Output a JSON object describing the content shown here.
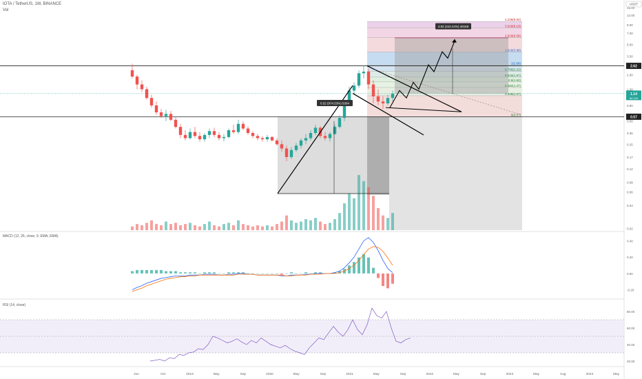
{
  "header": {
    "symbol": "IOTA / TetherUS, 1W, BINANCE",
    "volume_label": "Vol",
    "currency_badge": "USDT"
  },
  "colors": {
    "up": "#26a69a",
    "down": "#ef5350",
    "macd": "#2962ff",
    "signal": "#ff6d00",
    "rsi": "#7e57c2",
    "rsi_band": "#ede7f6",
    "gray_box": "#d9d9d9",
    "dark_box": "#a8a8a8",
    "pink": "#f3c6c6",
    "blue": "#c6dcef",
    "darkline": "#000000"
  },
  "chart_data": {
    "type": "candlestick",
    "price_scale": "log",
    "price_ticks": [
      "15.00",
      "12.00",
      "9.00",
      "7.00",
      "5.00",
      "3.50",
      "2.00",
      "1.30",
      "0.80",
      "0.50",
      "0.35",
      "0.25",
      "0.17",
      "0.12",
      "0.08",
      "0.06",
      "0.04",
      "0.02"
    ],
    "price_tick_values": [
      15,
      12,
      9,
      7,
      5,
      3.5,
      2,
      1.3,
      0.8,
      0.5,
      0.35,
      0.25,
      0.17,
      0.12,
      0.08,
      0.06,
      0.04,
      0.02
    ],
    "time_labels": [
      "Jun",
      "Oct",
      "2019",
      "May",
      "Sep",
      "2020",
      "May",
      "Sep",
      "2021",
      "May",
      "Sep",
      "2022",
      "May",
      "Sep",
      "2023",
      "May",
      "Aug",
      "2024",
      "May"
    ],
    "horizontal_levels": [
      {
        "value": 2.62,
        "label": "2.62"
      },
      {
        "value": 0.57,
        "label": "0.57"
      }
    ],
    "last_price": {
      "value": 1.14,
      "label": "1.14",
      "countdown": "5d 12h"
    },
    "fib_levels": [
      {
        "ratio": "4.236",
        "price": 9.92,
        "text": "4.236(9.92)"
      },
      {
        "ratio": "3.618",
        "price": 8.19,
        "text": "3.618(8.19)"
      },
      {
        "ratio": "2.618",
        "price": 6.09,
        "text": "2.618(6.09)"
      },
      {
        "ratio": "1.618",
        "price": 3.98,
        "text": "1.618(3.98)"
      },
      {
        "ratio": "1",
        "price": 2.68,
        "text": "1(2.68)"
      },
      {
        "ratio": "0.786",
        "price": 2.22,
        "text": "0.786(2.22)"
      },
      {
        "ratio": "0.618",
        "price": 1.87,
        "text": "0.618(1.87)"
      },
      {
        "ratio": "0.5",
        "price": 1.62,
        "text": "0.5(1.62)"
      },
      {
        "ratio": "0.382",
        "price": 1.37,
        "text": "0.382(1.37)"
      },
      {
        "ratio": "0.236",
        "price": 1.07,
        "text": "0.236(1.07)"
      },
      {
        "ratio": "0",
        "price": 0.57,
        "text": "0(0.57)"
      }
    ],
    "annotations": [
      {
        "text": "0.52 (974.53%) 5304",
        "kind": "measure-1"
      },
      {
        "text": "4.82 (410.44%) 48168",
        "kind": "measure-2"
      }
    ],
    "price_series": [
      {
        "x": 0,
        "o": 2.3,
        "h": 2.8,
        "l": 1.8,
        "c": 1.9
      },
      {
        "x": 1,
        "o": 1.9,
        "h": 2.0,
        "l": 1.3,
        "c": 1.5
      },
      {
        "x": 2,
        "o": 1.5,
        "h": 1.7,
        "l": 1.2,
        "c": 1.3
      },
      {
        "x": 3,
        "o": 1.3,
        "h": 1.4,
        "l": 0.95,
        "c": 1.0
      },
      {
        "x": 4,
        "o": 1.0,
        "h": 1.1,
        "l": 0.75,
        "c": 0.8
      },
      {
        "x": 5,
        "o": 0.8,
        "h": 0.9,
        "l": 0.6,
        "c": 0.65
      },
      {
        "x": 6,
        "o": 0.65,
        "h": 0.72,
        "l": 0.55,
        "c": 0.58
      },
      {
        "x": 7,
        "o": 0.58,
        "h": 0.7,
        "l": 0.5,
        "c": 0.62
      },
      {
        "x": 8,
        "o": 0.62,
        "h": 0.68,
        "l": 0.5,
        "c": 0.52
      },
      {
        "x": 9,
        "o": 0.52,
        "h": 0.56,
        "l": 0.4,
        "c": 0.42
      },
      {
        "x": 10,
        "o": 0.42,
        "h": 0.46,
        "l": 0.3,
        "c": 0.33
      },
      {
        "x": 11,
        "o": 0.33,
        "h": 0.38,
        "l": 0.28,
        "c": 0.3
      },
      {
        "x": 12,
        "o": 0.3,
        "h": 0.4,
        "l": 0.29,
        "c": 0.36
      },
      {
        "x": 13,
        "o": 0.36,
        "h": 0.42,
        "l": 0.3,
        "c": 0.32
      },
      {
        "x": 14,
        "o": 0.32,
        "h": 0.36,
        "l": 0.27,
        "c": 0.29
      },
      {
        "x": 15,
        "o": 0.29,
        "h": 0.35,
        "l": 0.27,
        "c": 0.33
      },
      {
        "x": 16,
        "o": 0.33,
        "h": 0.4,
        "l": 0.3,
        "c": 0.37
      },
      {
        "x": 17,
        "o": 0.37,
        "h": 0.41,
        "l": 0.31,
        "c": 0.33
      },
      {
        "x": 18,
        "o": 0.33,
        "h": 0.36,
        "l": 0.28,
        "c": 0.3
      },
      {
        "x": 19,
        "o": 0.3,
        "h": 0.34,
        "l": 0.27,
        "c": 0.31
      },
      {
        "x": 20,
        "o": 0.31,
        "h": 0.4,
        "l": 0.3,
        "c": 0.38
      },
      {
        "x": 21,
        "o": 0.38,
        "h": 0.45,
        "l": 0.34,
        "c": 0.36
      },
      {
        "x": 22,
        "o": 0.36,
        "h": 0.52,
        "l": 0.34,
        "c": 0.46
      },
      {
        "x": 23,
        "o": 0.46,
        "h": 0.5,
        "l": 0.38,
        "c": 0.4
      },
      {
        "x": 24,
        "o": 0.4,
        "h": 0.43,
        "l": 0.33,
        "c": 0.35
      },
      {
        "x": 25,
        "o": 0.35,
        "h": 0.37,
        "l": 0.3,
        "c": 0.32
      },
      {
        "x": 26,
        "o": 0.32,
        "h": 0.34,
        "l": 0.28,
        "c": 0.3
      },
      {
        "x": 27,
        "o": 0.3,
        "h": 0.32,
        "l": 0.27,
        "c": 0.29
      },
      {
        "x": 28,
        "o": 0.29,
        "h": 0.33,
        "l": 0.27,
        "c": 0.31
      },
      {
        "x": 29,
        "o": 0.31,
        "h": 0.32,
        "l": 0.27,
        "c": 0.28
      },
      {
        "x": 30,
        "o": 0.28,
        "h": 0.3,
        "l": 0.24,
        "c": 0.25
      },
      {
        "x": 31,
        "o": 0.25,
        "h": 0.28,
        "l": 0.2,
        "c": 0.22
      },
      {
        "x": 32,
        "o": 0.22,
        "h": 0.24,
        "l": 0.15,
        "c": 0.17
      },
      {
        "x": 33,
        "o": 0.17,
        "h": 0.23,
        "l": 0.16,
        "c": 0.21
      },
      {
        "x": 34,
        "o": 0.21,
        "h": 0.26,
        "l": 0.2,
        "c": 0.24
      },
      {
        "x": 35,
        "o": 0.24,
        "h": 0.3,
        "l": 0.22,
        "c": 0.28
      },
      {
        "x": 36,
        "o": 0.28,
        "h": 0.34,
        "l": 0.25,
        "c": 0.3
      },
      {
        "x": 37,
        "o": 0.3,
        "h": 0.38,
        "l": 0.28,
        "c": 0.35
      },
      {
        "x": 38,
        "o": 0.35,
        "h": 0.45,
        "l": 0.33,
        "c": 0.41
      },
      {
        "x": 39,
        "o": 0.41,
        "h": 0.43,
        "l": 0.3,
        "c": 0.32
      },
      {
        "x": 40,
        "o": 0.32,
        "h": 0.36,
        "l": 0.28,
        "c": 0.3
      },
      {
        "x": 41,
        "o": 0.3,
        "h": 0.36,
        "l": 0.27,
        "c": 0.34
      },
      {
        "x": 42,
        "o": 0.34,
        "h": 0.45,
        "l": 0.33,
        "c": 0.42
      },
      {
        "x": 43,
        "o": 0.42,
        "h": 0.6,
        "l": 0.4,
        "c": 0.55
      },
      {
        "x": 44,
        "o": 0.55,
        "h": 0.95,
        "l": 0.5,
        "c": 0.85
      },
      {
        "x": 45,
        "o": 0.85,
        "h": 1.4,
        "l": 0.8,
        "c": 1.25
      },
      {
        "x": 46,
        "o": 1.25,
        "h": 1.6,
        "l": 1.1,
        "c": 1.45
      },
      {
        "x": 47,
        "o": 1.45,
        "h": 2.3,
        "l": 1.35,
        "c": 2.1
      },
      {
        "x": 48,
        "o": 2.1,
        "h": 2.68,
        "l": 1.8,
        "c": 2.2
      },
      {
        "x": 49,
        "o": 2.2,
        "h": 2.4,
        "l": 1.3,
        "c": 1.5
      },
      {
        "x": 50,
        "o": 1.5,
        "h": 1.7,
        "l": 0.85,
        "c": 1.05
      },
      {
        "x": 51,
        "o": 1.05,
        "h": 1.3,
        "l": 0.8,
        "c": 0.9
      },
      {
        "x": 52,
        "o": 0.9,
        "h": 1.05,
        "l": 0.72,
        "c": 0.85
      },
      {
        "x": 53,
        "o": 0.85,
        "h": 1.1,
        "l": 0.8,
        "c": 1.0
      },
      {
        "x": 54,
        "o": 1.0,
        "h": 1.25,
        "l": 0.9,
        "c": 1.14
      }
    ],
    "volume_series": [
      3,
      5,
      4,
      6,
      8,
      5,
      4,
      7,
      5,
      6,
      4,
      5,
      6,
      4,
      3,
      5,
      7,
      4,
      3,
      5,
      6,
      4,
      8,
      5,
      4,
      3,
      4,
      3,
      4,
      3,
      5,
      7,
      12,
      8,
      6,
      7,
      9,
      8,
      10,
      7,
      5,
      6,
      9,
      14,
      22,
      30,
      26,
      45,
      40,
      35,
      28,
      18,
      12,
      10,
      14
    ],
    "macd": {
      "name": "MACD (12, 26, close, 9, EMA, EMA)",
      "ticks": [
        "0.40",
        "0.20",
        "0.00",
        "-0.20"
      ],
      "tick_values": [
        0.4,
        0.2,
        0,
        -0.2
      ],
      "macd_line": [
        -0.2,
        -0.17,
        -0.15,
        -0.12,
        -0.1,
        -0.08,
        -0.06,
        -0.05,
        -0.04,
        -0.03,
        -0.03,
        -0.03,
        -0.02,
        -0.02,
        -0.02,
        -0.01,
        -0.01,
        -0.01,
        -0.02,
        -0.02,
        -0.01,
        -0.01,
        0,
        0,
        -0.01,
        -0.01,
        -0.02,
        -0.02,
        -0.02,
        -0.02,
        -0.02,
        -0.03,
        -0.03,
        -0.02,
        -0.02,
        -0.02,
        -0.01,
        -0.01,
        0,
        0,
        0,
        0,
        0.01,
        0.03,
        0.07,
        0.13,
        0.2,
        0.3,
        0.4,
        0.44,
        0.38,
        0.28,
        0.16,
        0.06,
        0.01
      ],
      "signal_line": [
        -0.22,
        -0.2,
        -0.18,
        -0.15,
        -0.13,
        -0.11,
        -0.09,
        -0.07,
        -0.06,
        -0.05,
        -0.04,
        -0.04,
        -0.03,
        -0.03,
        -0.02,
        -0.02,
        -0.02,
        -0.02,
        -0.02,
        -0.02,
        -0.02,
        -0.02,
        -0.01,
        -0.01,
        -0.01,
        -0.01,
        -0.02,
        -0.02,
        -0.02,
        -0.02,
        -0.02,
        -0.02,
        -0.03,
        -0.03,
        -0.02,
        -0.02,
        -0.02,
        -0.01,
        -0.01,
        -0.01,
        0,
        0,
        0,
        0.01,
        0.03,
        0.06,
        0.1,
        0.16,
        0.23,
        0.3,
        0.33,
        0.32,
        0.27,
        0.19,
        0.1
      ]
    },
    "rsi": {
      "name": "RSI (14, close)",
      "ticks": [
        "80.00",
        "60.00",
        "40.00",
        "20.00"
      ],
      "tick_values": [
        80,
        60,
        40,
        20
      ],
      "band": [
        30,
        70
      ],
      "values": [
        20,
        21,
        22,
        20,
        24,
        23,
        28,
        27,
        30,
        31,
        35,
        34,
        40,
        50,
        48,
        45,
        42,
        44,
        47,
        43,
        40,
        45,
        42,
        48,
        44,
        40,
        38,
        36,
        39,
        35,
        32,
        30,
        28,
        36,
        42,
        48,
        46,
        54,
        62,
        55,
        50,
        58,
        70,
        58,
        52,
        64,
        84,
        75,
        72,
        80,
        60,
        44,
        42,
        46,
        48
      ]
    }
  }
}
